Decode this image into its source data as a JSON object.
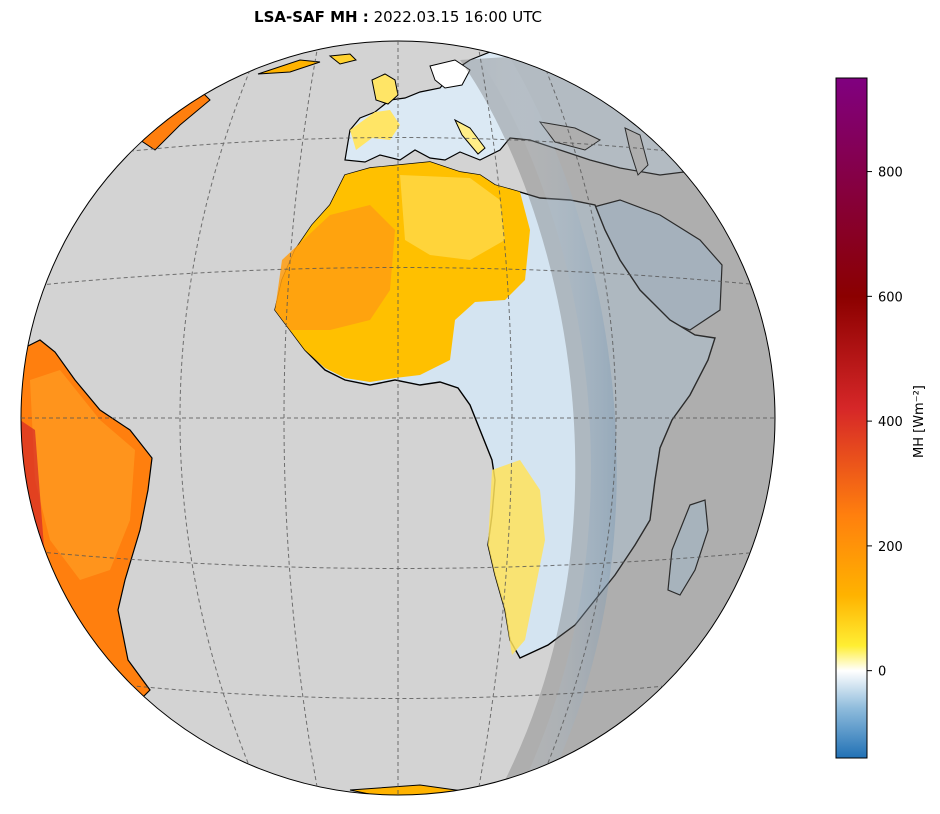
{
  "title": {
    "prefix": "LSA-SAF MH :",
    "datetime": "2022.03.15 16:00 UTC"
  },
  "colorbar": {
    "label": "MH [Wm⁻²]",
    "min": -140,
    "max": 950,
    "ticks": [
      0,
      200,
      400,
      600,
      800
    ],
    "tick_labels": [
      "0",
      "200",
      "400",
      "600",
      "800"
    ],
    "colors": [
      {
        "value": -140,
        "color": "#2171b5"
      },
      {
        "value": -60,
        "color": "#8fbcdc"
      },
      {
        "value": 0,
        "color": "#ffffff"
      },
      {
        "value": 40,
        "color": "#ffee33"
      },
      {
        "value": 120,
        "color": "#ffb300"
      },
      {
        "value": 250,
        "color": "#ff7f0e"
      },
      {
        "value": 420,
        "color": "#d62728"
      },
      {
        "value": 600,
        "color": "#8b0000"
      },
      {
        "value": 950,
        "color": "#800080"
      }
    ]
  },
  "map": {
    "projection": "orthographic",
    "ocean_color": "#d3d3d3",
    "night_color": "#a9a9a9",
    "gridlines": "dashed"
  }
}
